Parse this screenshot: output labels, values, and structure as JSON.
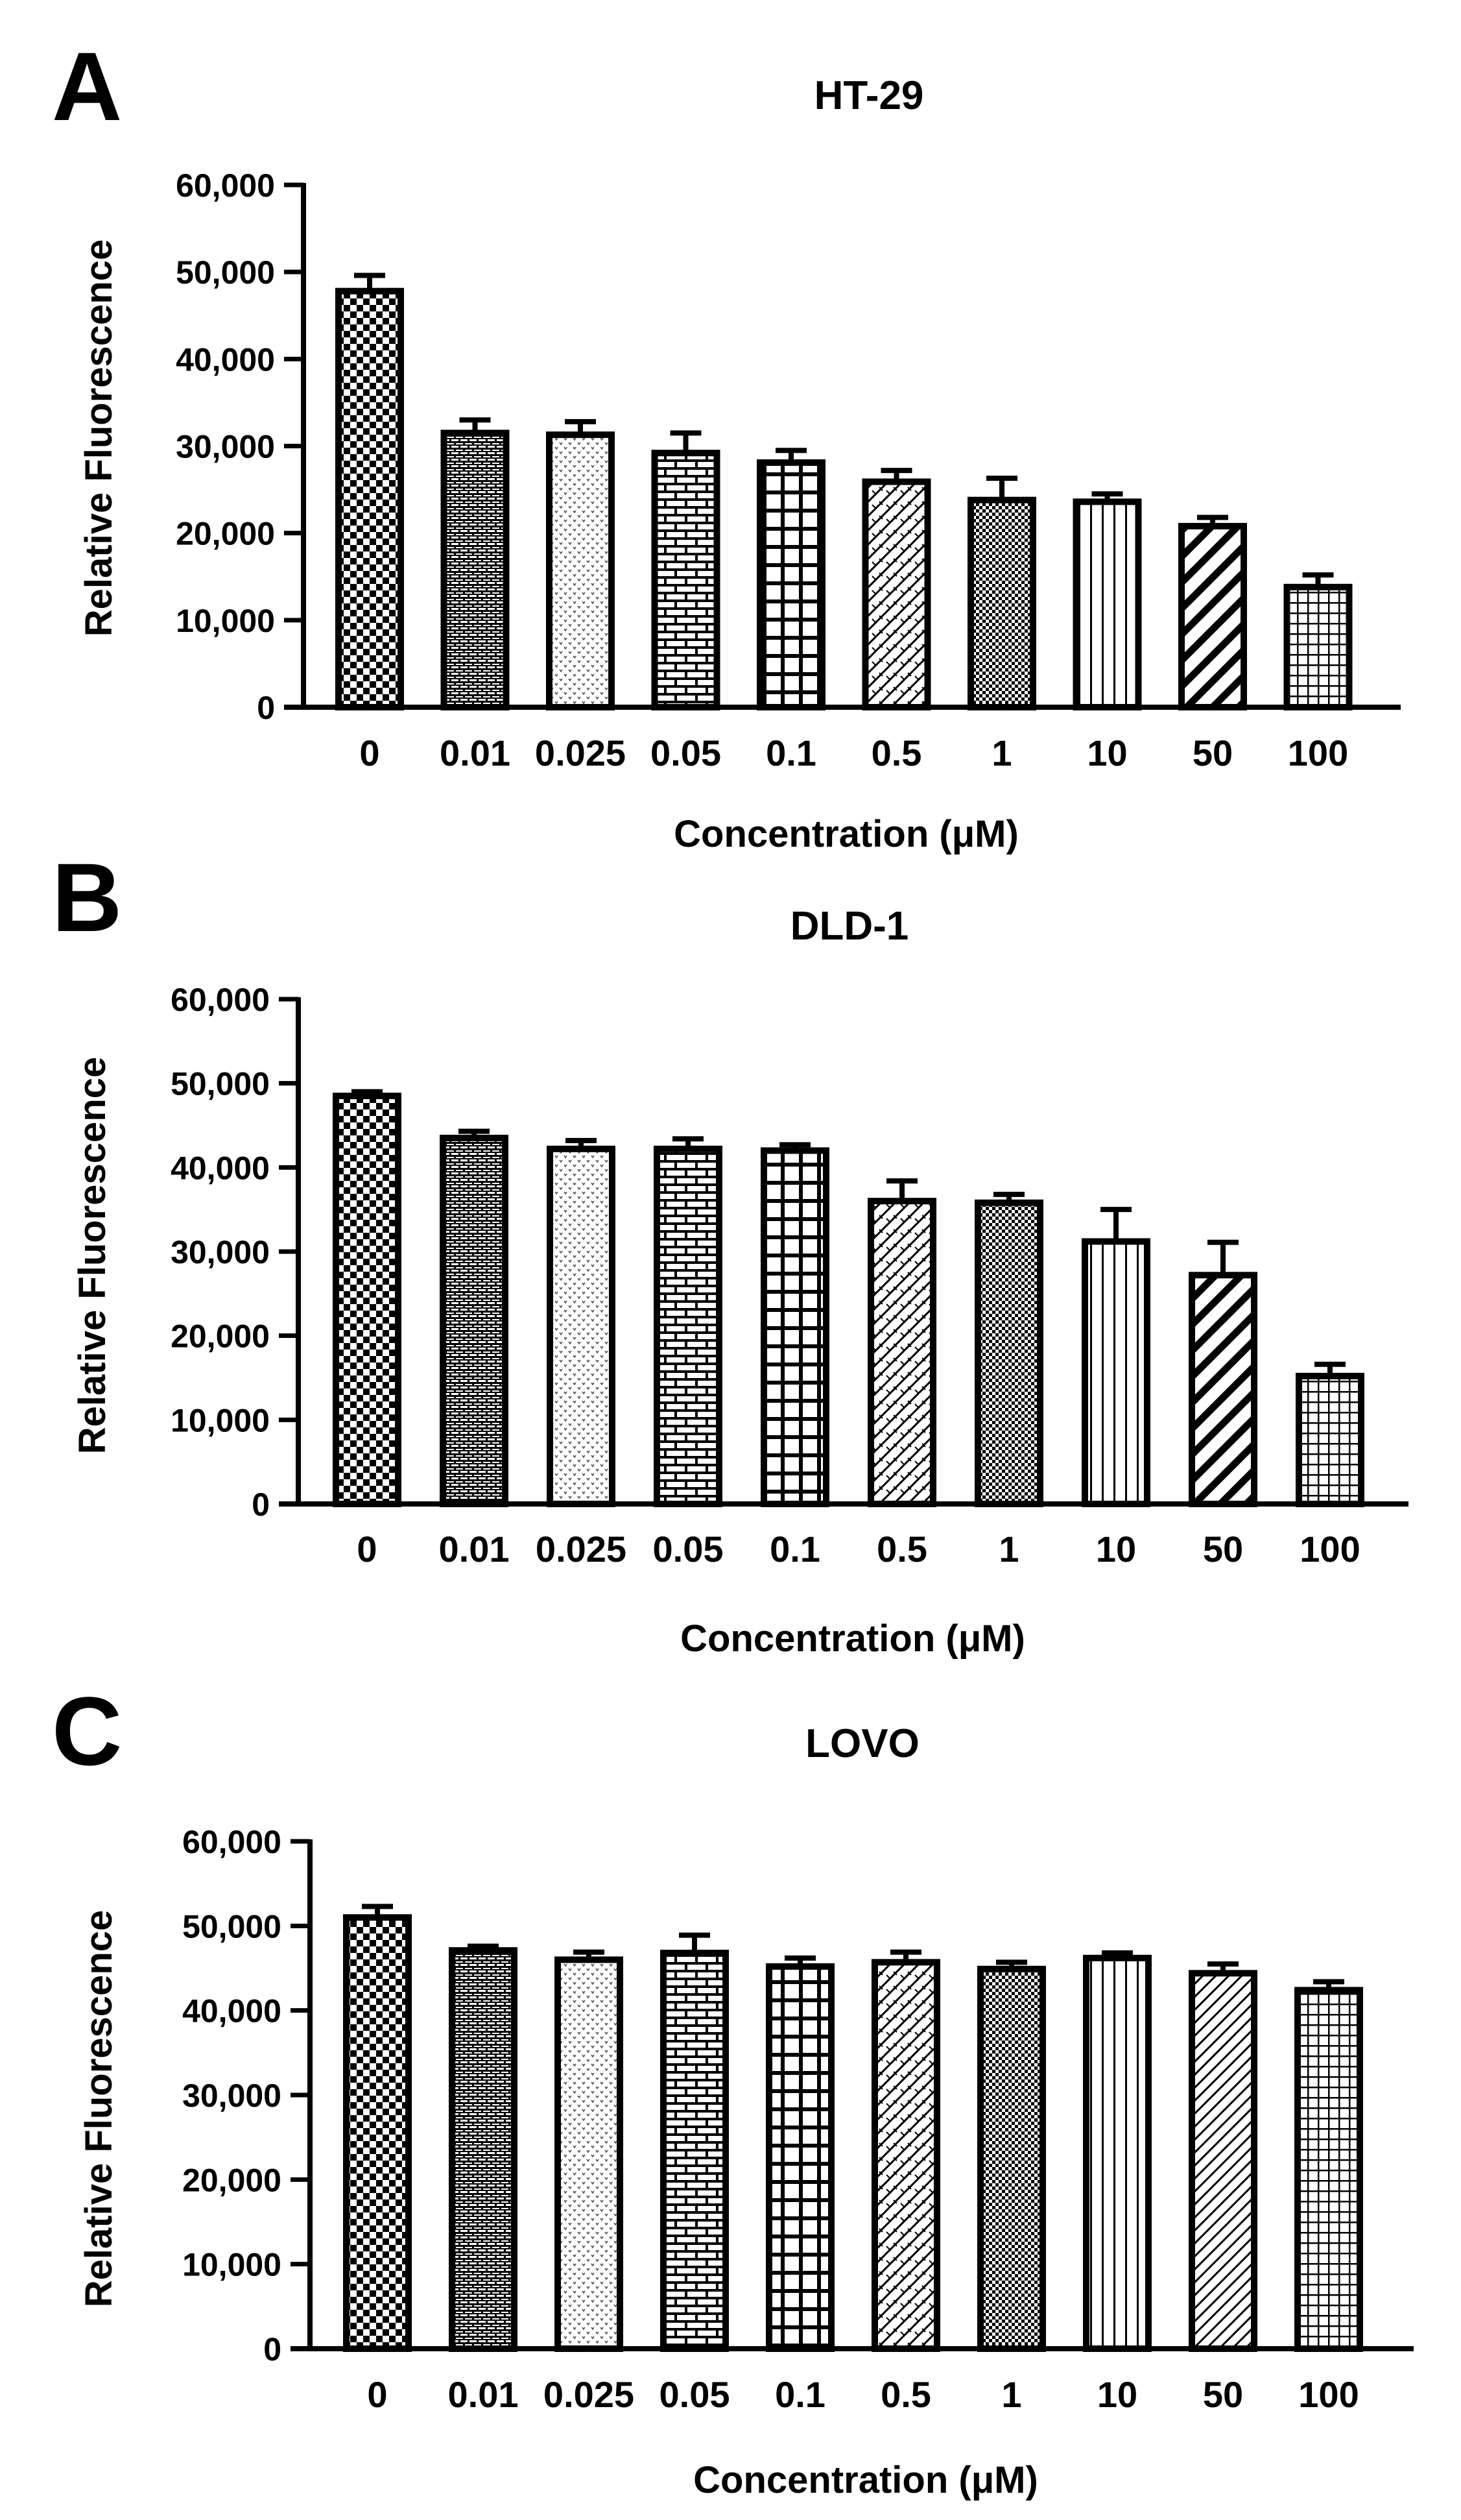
{
  "figure": {
    "panels": [
      "A",
      "B",
      "C"
    ]
  },
  "chart_data": [
    {
      "type": "bar",
      "panel": "A",
      "title": "HT-29",
      "xlabel": "Concentration (μM)",
      "ylabel": "Relative Fluorescence",
      "ylim": [
        0,
        60000
      ],
      "yticks": [
        0,
        10000,
        20000,
        30000,
        40000,
        50000,
        60000
      ],
      "ytick_labels": [
        "0",
        "10,000",
        "20,000",
        "30,000",
        "40,000",
        "50,000",
        "60,000"
      ],
      "categories": [
        "0",
        "0.01",
        "0.025",
        "0.05",
        "0.1",
        "0.5",
        "1",
        "10",
        "50",
        "100"
      ],
      "values": [
        47800,
        31500,
        31300,
        29200,
        28100,
        25900,
        23800,
        23600,
        20800,
        13800
      ],
      "errors": [
        1800,
        1500,
        1500,
        2300,
        1400,
        1300,
        2500,
        900,
        1000,
        1400
      ],
      "patterns": [
        "checker",
        "dense-brick",
        "dots",
        "brick",
        "grid",
        "diag-cross",
        "fine-check",
        "vlines",
        "diag-bold",
        "fine-grid"
      ]
    },
    {
      "type": "bar",
      "panel": "B",
      "title": "DLD-1",
      "xlabel": "Concentration (μM)",
      "ylabel": "Relative Fluorescence",
      "ylim": [
        0,
        60000
      ],
      "yticks": [
        0,
        10000,
        20000,
        30000,
        40000,
        50000,
        60000
      ],
      "ytick_labels": [
        "0",
        "10,000",
        "20,000",
        "30,000",
        "40,000",
        "50,000",
        "60,000"
      ],
      "categories": [
        "0",
        "0.01",
        "0.025",
        "0.05",
        "0.1",
        "0.5",
        "1",
        "10",
        "50",
        "100"
      ],
      "values": [
        48500,
        43500,
        42200,
        42200,
        42000,
        36000,
        35800,
        31200,
        27200,
        15200
      ],
      "errors": [
        500,
        800,
        1000,
        1200,
        700,
        2400,
        1000,
        3800,
        3900,
        1400
      ],
      "patterns": [
        "checker",
        "dense-brick",
        "dots",
        "brick",
        "grid",
        "diag-cross",
        "fine-check",
        "vlines",
        "diag-bold",
        "fine-grid"
      ]
    },
    {
      "type": "bar",
      "panel": "C",
      "title": "LOVO",
      "xlabel": "Concentration (μM)",
      "ylabel": "Relative Fluorescence",
      "ylim": [
        0,
        60000
      ],
      "yticks": [
        0,
        10000,
        20000,
        30000,
        40000,
        50000,
        60000
      ],
      "ytick_labels": [
        "0",
        "10,000",
        "20,000",
        "30,000",
        "40,000",
        "50,000",
        "60,000"
      ],
      "categories": [
        "0",
        "0.01",
        "0.025",
        "0.05",
        "0.1",
        "0.5",
        "1",
        "10",
        "50",
        "100"
      ],
      "values": [
        51000,
        47100,
        46000,
        46800,
        45200,
        45700,
        44900,
        46200,
        44400,
        42400
      ],
      "errors": [
        1300,
        500,
        900,
        2100,
        1000,
        1200,
        800,
        600,
        1100,
        1000
      ],
      "patterns": [
        "checker",
        "dense-brick",
        "dots",
        "brick",
        "grid",
        "diag-cross",
        "fine-check",
        "vlines",
        "diag-thin",
        "fine-grid"
      ]
    }
  ]
}
